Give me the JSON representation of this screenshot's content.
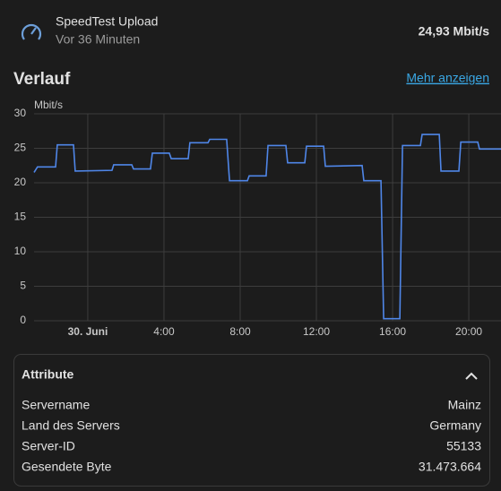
{
  "header": {
    "title": "SpeedTest Upload",
    "subtitle": "Vor 36 Minuten",
    "state": "24,93 Mbit/s"
  },
  "history": {
    "title": "Verlauf",
    "link": "Mehr anzeigen"
  },
  "chart_data": {
    "type": "line",
    "y_label": "Mbit/s",
    "color": "#4f86e8",
    "grid": true,
    "x": [
      -2.82,
      -2.64,
      -1.69,
      -1.6,
      -0.75,
      -0.66,
      1.27,
      1.36,
      2.31,
      2.4,
      3.29,
      3.39,
      4.28,
      4.38,
      5.27,
      5.36,
      6.31,
      6.4,
      7.29,
      7.44,
      8.38,
      8.47,
      9.36,
      9.46,
      10.4,
      10.49,
      11.39,
      11.48,
      12.38,
      12.47,
      14.4,
      14.49,
      15.39,
      15.53,
      16.38,
      16.52,
      17.46,
      17.55,
      18.45,
      18.54,
      19.48,
      19.58,
      20.47,
      20.56,
      21.69
    ],
    "values": [
      21.5,
      22.3,
      22.3,
      25.5,
      25.5,
      21.7,
      21.8,
      22.6,
      22.6,
      22.0,
      22.0,
      24.3,
      24.3,
      23.5,
      23.5,
      25.8,
      25.8,
      26.3,
      26.3,
      20.3,
      20.3,
      21.0,
      21.0,
      25.4,
      25.4,
      22.9,
      22.9,
      25.3,
      25.3,
      22.4,
      22.5,
      20.3,
      20.3,
      0.3,
      0.3,
      25.4,
      25.4,
      27.0,
      27.0,
      21.7,
      21.7,
      25.9,
      25.9,
      24.9,
      24.9
    ],
    "xlim": [
      -2.82,
      21.69
    ],
    "xticks": [
      {
        "value": 0,
        "label": "30. Juni"
      },
      {
        "value": 4,
        "label": "4:00"
      },
      {
        "value": 8,
        "label": "8:00"
      },
      {
        "value": 12,
        "label": "12:00"
      },
      {
        "value": 16,
        "label": "16:00"
      },
      {
        "value": 20,
        "label": "20:00"
      }
    ],
    "ylim": [
      0,
      30
    ],
    "yticks": [
      0,
      5,
      10,
      15,
      20,
      25,
      30
    ]
  },
  "attributes": {
    "title": "Attribute",
    "rows": [
      [
        "Servername",
        "Mainz"
      ],
      [
        "Land des Servers",
        "Germany"
      ],
      [
        "Server-ID",
        "55133"
      ],
      [
        "Gesendete Byte",
        "31.473.664"
      ]
    ]
  }
}
